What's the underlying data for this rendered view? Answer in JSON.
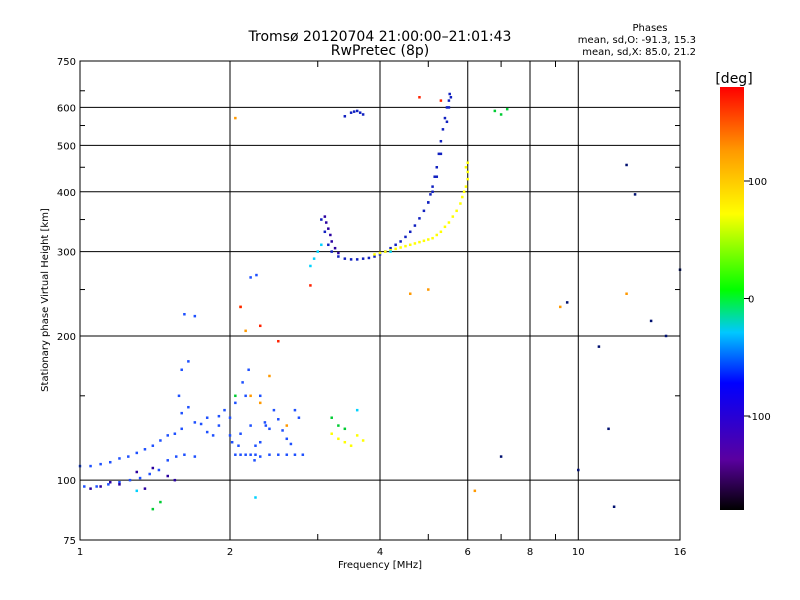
{
  "title": "Tromsø 20120704 21:00:00–21:01:43",
  "subtitle": "RwPretec (8p)",
  "phases": {
    "heading": "Phases",
    "o_line": "mean, sd,O: -91.3, 15.3",
    "x_line": "mean, sd,X:  85.0, 21.2"
  },
  "colorbar": {
    "label": "[deg]",
    "ticks": [
      "100",
      "0",
      "-100"
    ],
    "tick_values": [
      100,
      0,
      -100
    ],
    "range": [
      -180,
      180
    ]
  },
  "chart_data": {
    "type": "scatter",
    "title": "Tromsø 20120704 21:00:00–21:01:43",
    "subtitle": "RwPretec (8p)",
    "xlabel": "Frequency [MHz]",
    "ylabel": "Stationary phase Virtual Height [km]",
    "x_scale": "log",
    "y_scale": "log",
    "xlim": [
      1,
      16
    ],
    "ylim": [
      75,
      750
    ],
    "xticks": [
      1,
      2,
      4,
      6,
      8,
      10,
      16
    ],
    "xtick_labels": [
      "1",
      "2",
      "4",
      "6",
      "8",
      "10",
      "16"
    ],
    "yticks": [
      75,
      100,
      200,
      300,
      400,
      500,
      600,
      750
    ],
    "ytick_labels": [
      "75",
      "100",
      "200",
      "300",
      "400",
      "500",
      "600",
      "750"
    ],
    "grid": true,
    "color_encoding": "phase [deg]",
    "series": [
      {
        "color": "#1e50ff",
        "x": [
          1.0,
          1.05,
          1.1,
          1.15,
          1.2,
          1.25,
          1.3,
          1.35,
          1.4,
          1.45,
          1.5,
          1.6,
          1.7,
          1.8,
          1.9,
          2.0,
          1.02,
          1.08,
          1.14,
          1.2,
          1.26,
          1.32,
          1.38,
          1.44,
          1.5,
          1.56,
          1.62,
          1.7,
          2.05,
          2.1,
          2.15,
          2.2,
          2.25,
          2.3,
          2.4,
          2.5,
          2.6,
          2.7,
          2.8,
          2.1,
          2.2,
          2.3,
          2.4,
          2.5,
          2.6,
          2.7,
          2.05,
          2.15,
          2.25,
          2.35,
          2.45,
          2.55,
          2.65,
          2.75,
          2.12,
          2.18,
          2.24,
          2.3,
          2.36,
          1.55,
          1.6,
          1.65,
          1.58,
          1.62,
          1.7,
          1.75,
          1.8,
          1.85,
          1.9,
          1.95,
          2.0,
          2.02,
          2.08,
          2.2,
          2.26,
          1.6,
          1.65
        ],
        "y": [
          107,
          107,
          108,
          109,
          111,
          112,
          114,
          116,
          118,
          121,
          124,
          128,
          132,
          135,
          136,
          124,
          97,
          97,
          98,
          99,
          100,
          101,
          103,
          105,
          110,
          112,
          113,
          112,
          113,
          113,
          113,
          113,
          113,
          112,
          113,
          113,
          113,
          113,
          113,
          125,
          130,
          120,
          128,
          134,
          122,
          140,
          145,
          150,
          118,
          132,
          140,
          127,
          119,
          135,
          160,
          170,
          110,
          150,
          130,
          125,
          138,
          142,
          150,
          222,
          220,
          131,
          126,
          124,
          130,
          140,
          135,
          120,
          118,
          265,
          268,
          170,
          177
        ]
      },
      {
        "color": "#1020c0",
        "x": [
          3.05,
          3.1,
          3.15,
          3.2,
          3.3,
          3.4,
          3.5,
          3.6,
          3.7,
          3.8,
          3.9,
          4.0,
          4.1,
          4.2,
          4.3,
          4.4,
          4.5,
          4.6,
          4.7,
          4.8,
          4.9,
          5.0,
          5.05,
          5.1,
          5.15,
          5.2,
          5.25,
          5.3,
          5.35,
          5.4,
          5.45,
          5.5,
          5.52,
          5.55,
          5.5,
          5.45,
          5.3,
          5.2,
          5.1,
          5.0,
          3.5,
          3.55,
          3.6,
          3.65,
          3.7,
          3.4
        ],
        "y": [
          350,
          330,
          310,
          300,
          293,
          290,
          289,
          289,
          290,
          291,
          293,
          296,
          300,
          305,
          310,
          315,
          322,
          330,
          340,
          352,
          365,
          380,
          395,
          410,
          430,
          450,
          480,
          510,
          540,
          570,
          600,
          620,
          640,
          630,
          600,
          560,
          480,
          430,
          400,
          380,
          585,
          588,
          590,
          585,
          580,
          575
        ]
      },
      {
        "color": "#2a00a0",
        "x": [
          3.1,
          3.12,
          3.15,
          3.18,
          3.2,
          3.25,
          3.3,
          1.05,
          1.1,
          1.15,
          1.3,
          1.4,
          1.5,
          1.55,
          1.2,
          1.35
        ],
        "y": [
          355,
          345,
          335,
          325,
          315,
          305,
          298,
          96,
          97,
          99,
          104,
          106,
          102,
          100,
          98,
          96
        ]
      },
      {
        "color": "#ffff00",
        "x": [
          5.2,
          5.3,
          5.4,
          5.5,
          5.6,
          5.7,
          5.8,
          5.85,
          5.9,
          5.95,
          6.0,
          6.0,
          5.1,
          5.0,
          4.9,
          4.8,
          4.7,
          4.6,
          4.5,
          4.4,
          4.3,
          4.2,
          4.1,
          4.0,
          3.9,
          3.2,
          3.3,
          3.4,
          3.5,
          3.6,
          3.7,
          5.95,
          6.0
        ],
        "y": [
          325,
          330,
          338,
          345,
          355,
          365,
          378,
          390,
          400,
          410,
          425,
          440,
          320,
          318,
          316,
          314,
          312,
          310,
          308,
          306,
          304,
          302,
          300,
          298,
          296,
          125,
          122,
          120,
          118,
          124,
          121,
          450,
          460
        ]
      },
      {
        "color": "#00d2ff",
        "x": [
          2.9,
          2.95,
          3.0,
          3.05,
          3.6,
          4.2,
          1.3,
          2.25
        ],
        "y": [
          280,
          290,
          300,
          310,
          140,
          300,
          95,
          92
        ]
      },
      {
        "color": "#00cc33",
        "x": [
          3.2,
          3.3,
          3.4,
          6.8,
          7.0,
          7.2,
          1.4,
          1.45,
          2.05
        ],
        "y": [
          135,
          130,
          128,
          590,
          580,
          595,
          87,
          90,
          150
        ]
      },
      {
        "color": "#ff9900",
        "x": [
          2.05,
          2.1,
          2.15,
          2.2,
          2.3,
          2.4,
          2.6,
          4.6,
          5.0,
          6.2,
          9.2,
          12.5
        ],
        "y": [
          570,
          230,
          205,
          150,
          145,
          165,
          130,
          245,
          250,
          95,
          230,
          245
        ]
      },
      {
        "color": "#ff2200",
        "x": [
          2.1,
          2.3,
          2.5,
          2.9,
          4.8,
          5.3
        ],
        "y": [
          230,
          210,
          195,
          255,
          630,
          620
        ]
      },
      {
        "color": "#001070",
        "x": [
          9.5,
          10.0,
          11.0,
          11.8,
          12.5,
          13.0,
          14.0,
          15.0,
          16.0,
          7.0,
          11.5
        ],
        "y": [
          235,
          105,
          190,
          88,
          455,
          395,
          215,
          200,
          275,
          112,
          128
        ]
      }
    ]
  }
}
